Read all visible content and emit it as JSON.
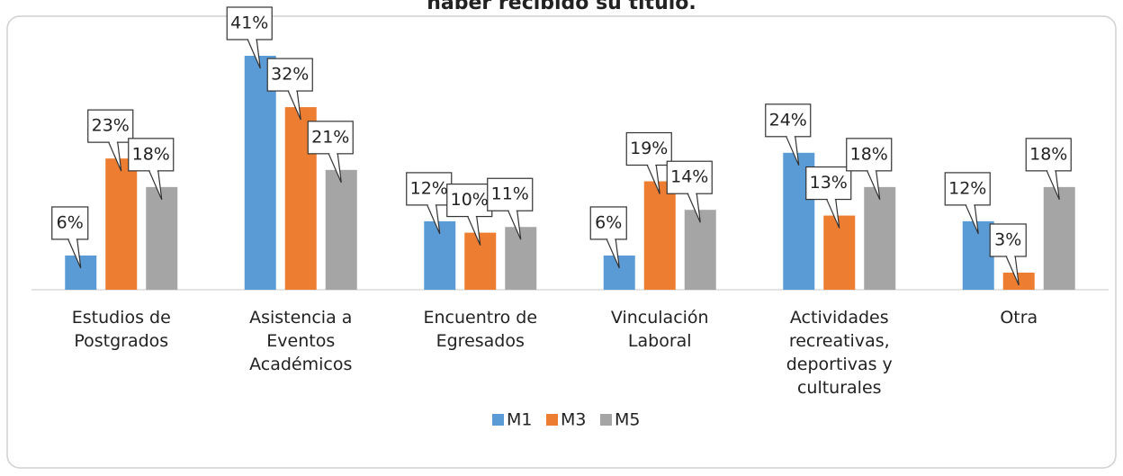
{
  "chart_data": {
    "type": "bar",
    "title": "haber recibido su título.",
    "categories": [
      "Estudios de Postgrados",
      "Asistencia a Eventos Académicos",
      "Encuentro de Egresados",
      "Vinculación Laboral",
      "Actividades recreativas, deportivas y culturales",
      "Otra"
    ],
    "series": [
      {
        "name": "M1",
        "color": "#5b9bd5",
        "values": [
          6,
          41,
          12,
          6,
          24,
          12
        ],
        "value_labels": [
          "6%",
          "41%",
          "12%",
          "6%",
          "24%",
          "12%"
        ]
      },
      {
        "name": "M3",
        "color": "#ed7d31",
        "values": [
          23,
          32,
          10,
          19,
          13,
          3
        ],
        "value_labels": [
          "23%",
          "32%",
          "10%",
          "19%",
          "13%",
          "3%"
        ]
      },
      {
        "name": "M5",
        "color": "#a5a5a5",
        "values": [
          18,
          21,
          11,
          14,
          18,
          18
        ],
        "value_labels": [
          "18%",
          "21%",
          "11%",
          "14%",
          "18%",
          "18%"
        ]
      }
    ],
    "legend": "bottom"
  }
}
